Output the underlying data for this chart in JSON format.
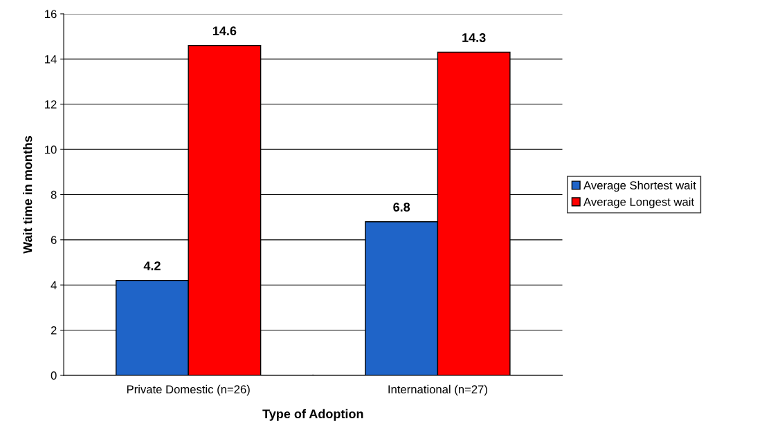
{
  "chart_data": {
    "type": "bar",
    "xlabel": "Type of Adoption",
    "ylabel": "Wait time in months",
    "categories": [
      "Private Domestic (n=26)",
      "International (n=27)"
    ],
    "series": [
      {
        "name": "Average Shortest wait",
        "color": "#1f64c8",
        "values": [
          4.2,
          6.8
        ]
      },
      {
        "name": "Average Longest wait",
        "color": "#ff0000",
        "values": [
          14.6,
          14.3
        ]
      }
    ],
    "ylim": [
      0,
      16
    ],
    "yticks": [
      0,
      2,
      4,
      6,
      8,
      10,
      12,
      14,
      16
    ],
    "grid": "y",
    "legend": "right",
    "data_labels": true
  }
}
